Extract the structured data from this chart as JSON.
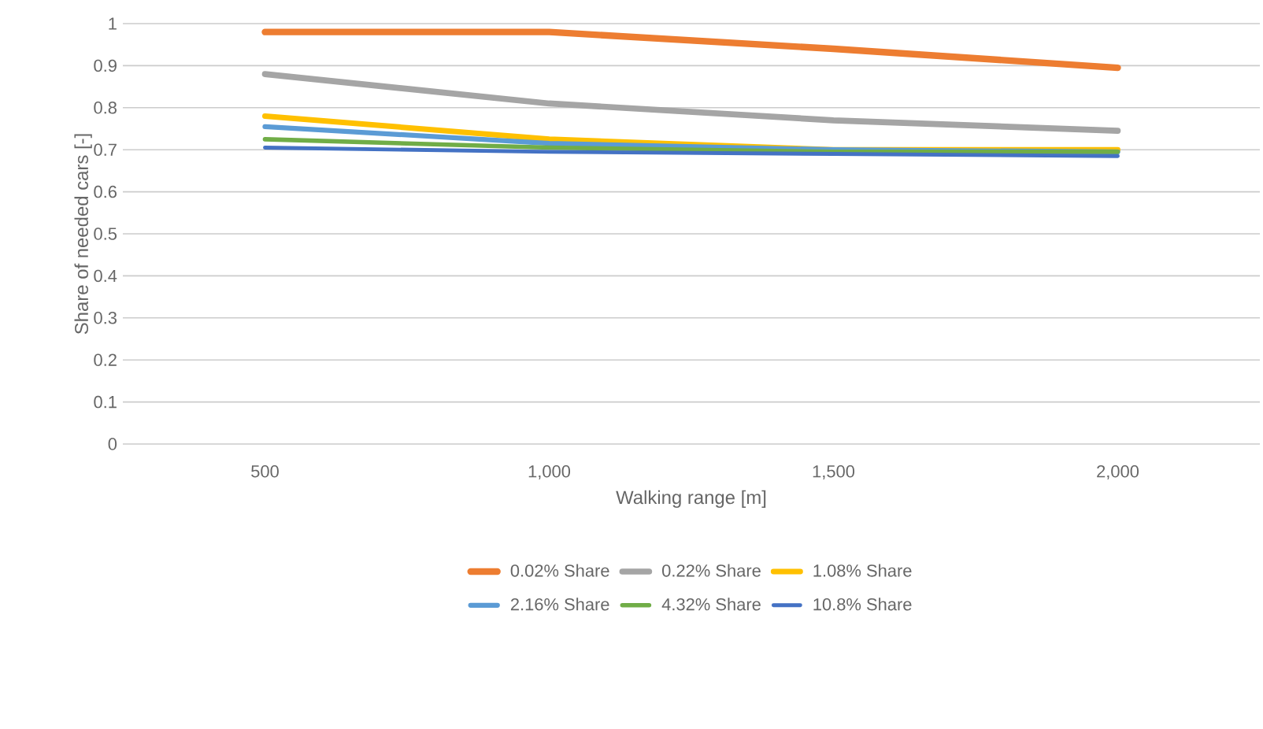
{
  "chart_data": {
    "type": "line",
    "xlabel": "Walking range [m]",
    "ylabel": "Share of needed cars [-]",
    "categories": [
      "500",
      "1,000",
      "1,500",
      "2,000"
    ],
    "series": [
      {
        "name": "0.02% Share",
        "color": "#ed7d31",
        "values": [
          0.98,
          0.98,
          0.94,
          0.895
        ]
      },
      {
        "name": "0.22% Share",
        "color": "#a5a5a5",
        "values": [
          0.88,
          0.81,
          0.77,
          0.745
        ]
      },
      {
        "name": "1.08% Share",
        "color": "#ffc000",
        "values": [
          0.78,
          0.725,
          0.7,
          0.7
        ]
      },
      {
        "name": "2.16% Share",
        "color": "#5b9bd5",
        "values": [
          0.755,
          0.715,
          0.7,
          0.695
        ]
      },
      {
        "name": "4.32% Share",
        "color": "#70ad47",
        "values": [
          0.725,
          0.705,
          0.695,
          0.695
        ]
      },
      {
        "name": "10.8% Share",
        "color": "#4472c4",
        "values": [
          0.705,
          0.695,
          0.69,
          0.685
        ]
      }
    ],
    "ylim": [
      0,
      1
    ],
    "yticks": [
      0,
      0.1,
      0.2,
      0.3,
      0.4,
      0.5,
      0.6,
      0.7,
      0.8,
      0.9,
      1
    ],
    "grid": "y",
    "legend": "bottom",
    "marker": "none",
    "line_style": "solid"
  }
}
